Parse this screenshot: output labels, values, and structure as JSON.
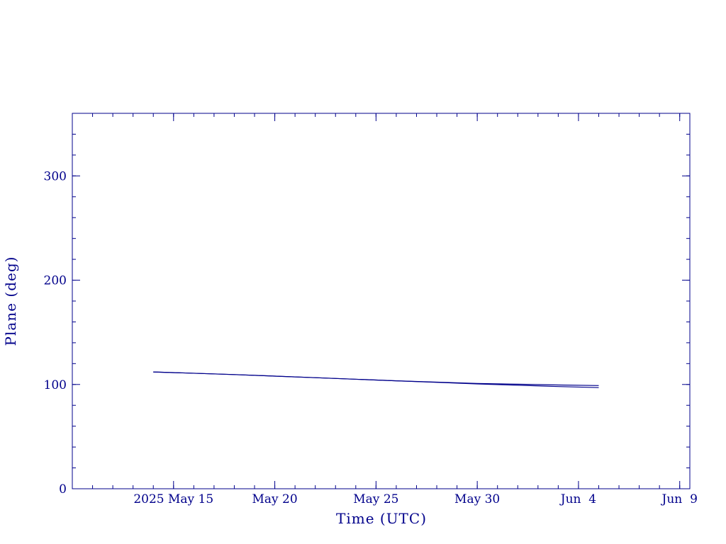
{
  "chart_data": {
    "type": "line",
    "title": "",
    "xlabel": "Time (UTC)",
    "ylabel": "Plane (deg)",
    "x_axis": {
      "kind": "date",
      "range": [
        "2025-05-10",
        "2025-06-09T12:00"
      ],
      "ticks": [
        {
          "date": "2025-05-15",
          "label": "2025 May 15"
        },
        {
          "date": "2025-05-20",
          "label": "May 20"
        },
        {
          "date": "2025-05-25",
          "label": "May 25"
        },
        {
          "date": "2025-05-30",
          "label": "May 30"
        },
        {
          "date": "2025-06-04",
          "label": "Jun  4"
        },
        {
          "date": "2025-06-09",
          "label": "Jun  9"
        }
      ]
    },
    "y_axis": {
      "range": [
        0,
        360
      ],
      "ticks": [
        0,
        100,
        200,
        300
      ],
      "minor_step": 20
    },
    "grid": false,
    "line_color": "#00008b",
    "series": [
      {
        "points": [
          [
            "2025-05-14",
            112
          ],
          [
            "2025-05-18",
            109.5
          ],
          [
            "2025-05-22",
            106.5
          ],
          [
            "2025-05-26",
            103.5
          ],
          [
            "2025-05-30",
            101
          ],
          [
            "2025-06-03",
            99.5
          ],
          [
            "2025-06-05",
            99
          ]
        ]
      },
      {
        "points": [
          [
            "2025-05-14",
            112
          ],
          [
            "2025-05-18",
            109.5
          ],
          [
            "2025-05-22",
            106.5
          ],
          [
            "2025-05-26",
            103.5
          ],
          [
            "2025-05-30",
            100.5
          ],
          [
            "2025-06-03",
            98
          ],
          [
            "2025-06-05",
            97
          ]
        ]
      }
    ]
  }
}
